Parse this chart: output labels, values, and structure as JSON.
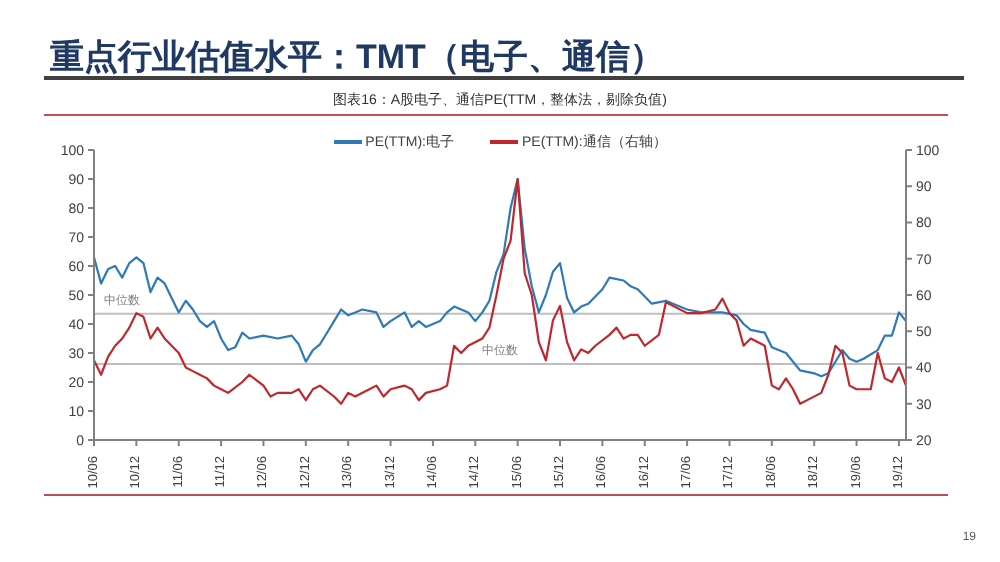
{
  "chart_data": {
    "type": "line",
    "title": "重点行业估值水平：TMT（电子、通信）",
    "subtitle": "图表16：A股电子、通信PE(TTM，整体法，剔除负值)",
    "xlim": [
      "2010-06",
      "2020-01"
    ],
    "xticks": [
      {
        "value": "2010-06",
        "label": "10/06"
      },
      {
        "value": "2010-12",
        "label": "10/12"
      },
      {
        "value": "2011-06",
        "label": "11/06"
      },
      {
        "value": "2011-12",
        "label": "11/12"
      },
      {
        "value": "2012-06",
        "label": "12/06"
      },
      {
        "value": "2012-12",
        "label": "12/12"
      },
      {
        "value": "2013-06",
        "label": "13/06"
      },
      {
        "value": "2013-12",
        "label": "13/12"
      },
      {
        "value": "2014-06",
        "label": "14/06"
      },
      {
        "value": "2014-12",
        "label": "14/12"
      },
      {
        "value": "2015-06",
        "label": "15/06"
      },
      {
        "value": "2015-12",
        "label": "15/12"
      },
      {
        "value": "2016-06",
        "label": "16/06"
      },
      {
        "value": "2016-12",
        "label": "16/12"
      },
      {
        "value": "2017-06",
        "label": "17/06"
      },
      {
        "value": "2017-12",
        "label": "17/12"
      },
      {
        "value": "2018-06",
        "label": "18/06"
      },
      {
        "value": "2018-12",
        "label": "18/12"
      },
      {
        "value": "2019-06",
        "label": "19/06"
      },
      {
        "value": "2019-12",
        "label": "19/12"
      }
    ],
    "ylim": [
      0,
      100
    ],
    "yticks": [
      0,
      10,
      20,
      30,
      40,
      50,
      60,
      70,
      80,
      90,
      100
    ],
    "y2lim": [
      20,
      100
    ],
    "y2ticks": [
      20,
      30,
      40,
      50,
      60,
      70,
      80,
      90,
      100
    ],
    "legend": "top",
    "marker": "none",
    "line_style": "solid",
    "ref_lines": [
      {
        "axis": "y",
        "value": 43.5,
        "label": "中位数",
        "color": "#bfbfbf"
      },
      {
        "axis": "y2",
        "value": 41,
        "label": "中位数",
        "color": "#bfbfbf"
      }
    ],
    "annotations": [
      "19"
    ],
    "series": [
      {
        "name": "PE(TTM):电子",
        "color": "#2e7ab8",
        "x": [
          "2010-06",
          "2010-07",
          "2010-08",
          "2010-09",
          "2010-10",
          "2010-11",
          "2010-12",
          "2011-01",
          "2011-02",
          "2011-03",
          "2011-04",
          "2011-05",
          "2011-06",
          "2011-07",
          "2011-08",
          "2011-09",
          "2011-10",
          "2011-11",
          "2011-12",
          "2012-01",
          "2012-02",
          "2012-03",
          "2012-04",
          "2012-06",
          "2012-08",
          "2012-10",
          "2012-11",
          "2012-12",
          "2013-01",
          "2013-02",
          "2013-03",
          "2013-04",
          "2013-05",
          "2013-06",
          "2013-07",
          "2013-08",
          "2013-10",
          "2013-11",
          "2013-12",
          "2014-02",
          "2014-03",
          "2014-04",
          "2014-05",
          "2014-07",
          "2014-08",
          "2014-09",
          "2014-11",
          "2014-12",
          "2015-01",
          "2015-02",
          "2015-03",
          "2015-04",
          "2015-05",
          "2015-06",
          "2015-07",
          "2015-08",
          "2015-09",
          "2015-10",
          "2015-11",
          "2015-12",
          "2016-01",
          "2016-02",
          "2016-03",
          "2016-04",
          "2016-06",
          "2016-07",
          "2016-09",
          "2016-10",
          "2016-11",
          "2017-01",
          "2017-03",
          "2017-04",
          "2017-06",
          "2017-08",
          "2017-09",
          "2017-11",
          "2018-01",
          "2018-02",
          "2018-03",
          "2018-05",
          "2018-06",
          "2018-08",
          "2018-09",
          "2018-10",
          "2018-12",
          "2019-01",
          "2019-02",
          "2019-03",
          "2019-04",
          "2019-05",
          "2019-06",
          "2019-07",
          "2019-09",
          "2019-10",
          "2019-11",
          "2019-12",
          "2020-01"
        ],
        "values": [
          63,
          54,
          59,
          60,
          56,
          61,
          63,
          61,
          51,
          56,
          54,
          49,
          44,
          48,
          45,
          41,
          39,
          41,
          35,
          31,
          32,
          37,
          35,
          36,
          35,
          36,
          33,
          27,
          31,
          33,
          37,
          41,
          45,
          43,
          44,
          45,
          44,
          39,
          41,
          44,
          39,
          41,
          39,
          41,
          44,
          46,
          44,
          41,
          44,
          48,
          58,
          64,
          80,
          90,
          66,
          53,
          44,
          50,
          58,
          61,
          49,
          44,
          46,
          47,
          52,
          56,
          55,
          53,
          52,
          47,
          48,
          47,
          45,
          44,
          44,
          44,
          43,
          40,
          38,
          37,
          32,
          30,
          27,
          24,
          23,
          22,
          23,
          27,
          31,
          28,
          27,
          28,
          31,
          36,
          36,
          44,
          41
        ]
      },
      {
        "name": "PE(TTM):通信（右轴）",
        "color": "#c0262b",
        "axis": "y2",
        "x": [
          "2010-06",
          "2010-07",
          "2010-08",
          "2010-09",
          "2010-10",
          "2010-11",
          "2010-12",
          "2011-01",
          "2011-02",
          "2011-03",
          "2011-04",
          "2011-05",
          "2011-06",
          "2011-07",
          "2011-08",
          "2011-09",
          "2011-10",
          "2011-11",
          "2011-12",
          "2012-01",
          "2012-03",
          "2012-04",
          "2012-06",
          "2012-07",
          "2012-08",
          "2012-10",
          "2012-11",
          "2012-12",
          "2013-01",
          "2013-02",
          "2013-04",
          "2013-05",
          "2013-06",
          "2013-07",
          "2013-09",
          "2013-10",
          "2013-11",
          "2013-12",
          "2014-02",
          "2014-03",
          "2014-04",
          "2014-05",
          "2014-07",
          "2014-08",
          "2014-09",
          "2014-10",
          "2014-11",
          "2015-01",
          "2015-02",
          "2015-03",
          "2015-04",
          "2015-05",
          "2015-06",
          "2015-07",
          "2015-08",
          "2015-09",
          "2015-10",
          "2015-11",
          "2015-12",
          "2016-01",
          "2016-02",
          "2016-03",
          "2016-04",
          "2016-05",
          "2016-07",
          "2016-08",
          "2016-09",
          "2016-10",
          "2016-11",
          "2016-12",
          "2017-02",
          "2017-03",
          "2017-04",
          "2017-06",
          "2017-07",
          "2017-08",
          "2017-10",
          "2017-11",
          "2017-12",
          "2018-01",
          "2018-02",
          "2018-03",
          "2018-05",
          "2018-06",
          "2018-07",
          "2018-08",
          "2018-09",
          "2018-10",
          "2018-11",
          "2019-01",
          "2019-02",
          "2019-03",
          "2019-04",
          "2019-05",
          "2019-06",
          "2019-08",
          "2019-09",
          "2019-10",
          "2019-11",
          "2019-12",
          "2020-01"
        ],
        "values": [
          42,
          38,
          43,
          46,
          48,
          51,
          55,
          54,
          48,
          51,
          48,
          46,
          44,
          40,
          39,
          38,
          37,
          35,
          34,
          33,
          36,
          38,
          35,
          32,
          33,
          33,
          34,
          31,
          34,
          35,
          32,
          30,
          33,
          32,
          34,
          35,
          32,
          34,
          35,
          34,
          31,
          33,
          34,
          35,
          46,
          44,
          46,
          48,
          51,
          60,
          70,
          75,
          92,
          66,
          60,
          47,
          42,
          53,
          57,
          47,
          42,
          45,
          44,
          46,
          49,
          51,
          48,
          49,
          49,
          46,
          49,
          58,
          57,
          55,
          55,
          55,
          56,
          59,
          55,
          53,
          46,
          48,
          46,
          35,
          34,
          37,
          34,
          30,
          31,
          33,
          38,
          46,
          44,
          35,
          34,
          34,
          44,
          37,
          36,
          40,
          35
        ]
      }
    ]
  }
}
